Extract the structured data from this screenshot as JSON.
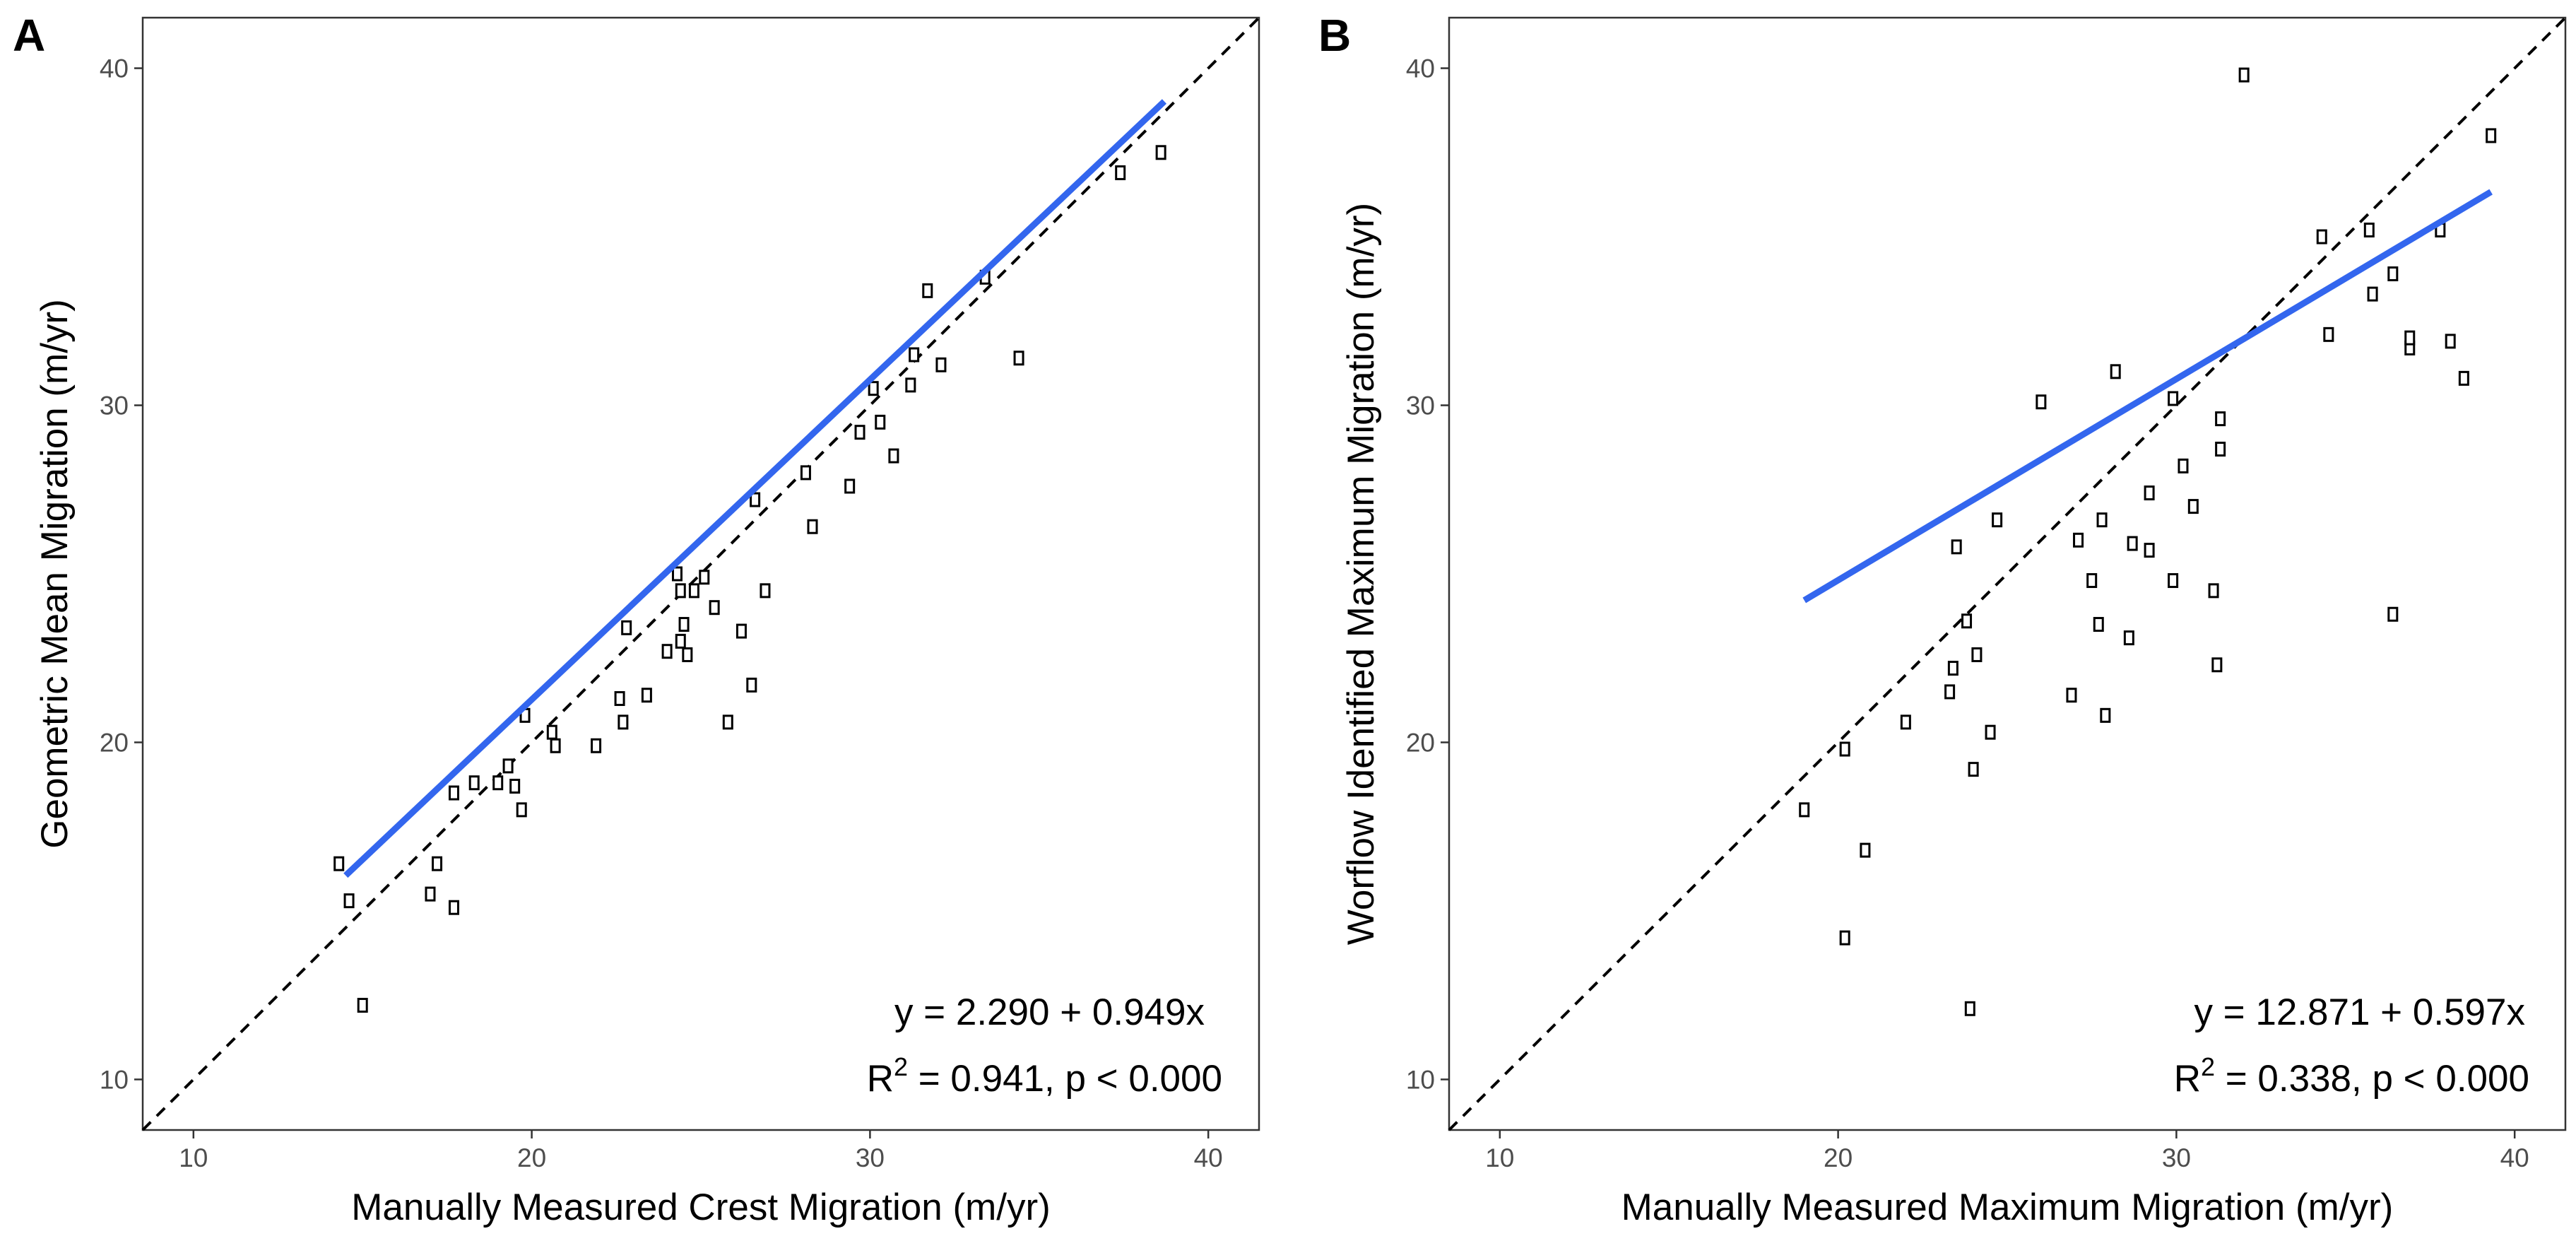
{
  "chart_data": [
    {
      "panel_label": "A",
      "type": "scatter",
      "xlabel": "Manually Measured Crest Migration (m/yr)",
      "ylabel": "Geometric Mean Migration (m/yr)",
      "xlim": [
        8.5,
        41.5
      ],
      "ylim": [
        8.5,
        41.5
      ],
      "xticks": [
        10,
        20,
        30,
        40
      ],
      "yticks": [
        10,
        20,
        30,
        40
      ],
      "xtick_labels": [
        "10",
        "20",
        "30",
        "40"
      ],
      "ytick_labels": [
        "10",
        "20",
        "30",
        "40"
      ],
      "grid": false,
      "reference_line": {
        "style": "dashed",
        "color": "#000000",
        "description": "1:1 line"
      },
      "fit_line": {
        "intercept": 2.29,
        "slope": 0.949,
        "x_range": [
          14.5,
          38.7
        ],
        "color": "#3366ee"
      },
      "annotation": {
        "equation": "y = 2.290 + 0.949x",
        "r2_prefix": "R",
        "r2_sup": "2",
        "r2_rest": " = 0.941, p < 0.000"
      },
      "points": [
        [
          14.3,
          16.4
        ],
        [
          14.6,
          15.3
        ],
        [
          15.0,
          12.2
        ],
        [
          17.0,
          15.5
        ],
        [
          17.2,
          16.4
        ],
        [
          17.7,
          15.1
        ],
        [
          17.7,
          18.5
        ],
        [
          18.3,
          18.8
        ],
        [
          19.0,
          18.8
        ],
        [
          19.3,
          19.3
        ],
        [
          19.5,
          18.7
        ],
        [
          19.7,
          18.0
        ],
        [
          19.8,
          20.8
        ],
        [
          20.6,
          20.3
        ],
        [
          20.7,
          19.9
        ],
        [
          21.9,
          19.9
        ],
        [
          22.6,
          21.3
        ],
        [
          22.7,
          20.6
        ],
        [
          22.8,
          23.4
        ],
        [
          23.4,
          21.4
        ],
        [
          24.0,
          22.7
        ],
        [
          24.3,
          25.0
        ],
        [
          24.4,
          24.5
        ],
        [
          24.4,
          23.0
        ],
        [
          24.5,
          23.5
        ],
        [
          24.6,
          22.6
        ],
        [
          24.8,
          24.5
        ],
        [
          25.1,
          24.9
        ],
        [
          25.4,
          24.0
        ],
        [
          25.8,
          20.6
        ],
        [
          26.2,
          23.3
        ],
        [
          26.5,
          21.7
        ],
        [
          26.6,
          27.2
        ],
        [
          26.9,
          24.5
        ],
        [
          28.1,
          28.0
        ],
        [
          28.3,
          26.4
        ],
        [
          29.4,
          27.6
        ],
        [
          29.7,
          29.2
        ],
        [
          30.1,
          30.5
        ],
        [
          30.3,
          29.5
        ],
        [
          30.7,
          28.5
        ],
        [
          31.2,
          30.6
        ],
        [
          31.3,
          31.5
        ],
        [
          31.7,
          33.4
        ],
        [
          32.1,
          31.2
        ],
        [
          33.4,
          33.8
        ],
        [
          34.4,
          31.4
        ],
        [
          37.4,
          36.9
        ],
        [
          38.6,
          37.5
        ]
      ]
    },
    {
      "panel_label": "B",
      "type": "scatter",
      "xlabel": "Manually Measured Maximum Migration (m/yr)",
      "ylabel": "Worflow Identified Maximum Migration (m/yr)",
      "xlim": [
        8.5,
        41.5
      ],
      "ylim": [
        8.5,
        41.5
      ],
      "xticks": [
        10,
        20,
        30,
        40
      ],
      "yticks": [
        10,
        20,
        30,
        40
      ],
      "xtick_labels": [
        "10",
        "20",
        "30",
        "40"
      ],
      "ytick_labels": [
        "10",
        "20",
        "30",
        "40"
      ],
      "grid": false,
      "reference_line": {
        "style": "dashed",
        "color": "#000000",
        "description": "1:1 line"
      },
      "fit_line": {
        "intercept": 12.871,
        "slope": 0.597,
        "x_range": [
          19.0,
          39.3
        ],
        "color": "#3366ee"
      },
      "annotation": {
        "equation": "y = 12.871 + 0.597x",
        "r2_prefix": "R",
        "r2_sup": "2",
        "r2_rest": " = 0.338, p < 0.000"
      },
      "points": [
        [
          19.0,
          18.0
        ],
        [
          20.2,
          19.8
        ],
        [
          20.2,
          14.2
        ],
        [
          20.8,
          16.8
        ],
        [
          22.0,
          20.6
        ],
        [
          23.3,
          21.5
        ],
        [
          23.4,
          22.2
        ],
        [
          23.5,
          25.8
        ],
        [
          23.8,
          23.6
        ],
        [
          23.9,
          12.1
        ],
        [
          24.0,
          19.2
        ],
        [
          24.1,
          22.6
        ],
        [
          24.5,
          20.3
        ],
        [
          24.7,
          26.6
        ],
        [
          26.0,
          30.1
        ],
        [
          26.9,
          21.4
        ],
        [
          27.1,
          26.0
        ],
        [
          27.5,
          24.8
        ],
        [
          27.7,
          23.5
        ],
        [
          27.8,
          26.6
        ],
        [
          27.9,
          20.8
        ],
        [
          28.2,
          31.0
        ],
        [
          28.6,
          23.1
        ],
        [
          28.7,
          25.9
        ],
        [
          29.2,
          27.4
        ],
        [
          29.2,
          25.7
        ],
        [
          29.9,
          30.2
        ],
        [
          29.9,
          24.8
        ],
        [
          30.2,
          28.2
        ],
        [
          30.5,
          27.0
        ],
        [
          31.1,
          24.5
        ],
        [
          31.2,
          22.3
        ],
        [
          31.3,
          29.6
        ],
        [
          31.3,
          28.7
        ],
        [
          32.0,
          39.8
        ],
        [
          34.3,
          35.0
        ],
        [
          34.5,
          32.1
        ],
        [
          35.7,
          35.2
        ],
        [
          35.8,
          33.3
        ],
        [
          36.4,
          33.9
        ],
        [
          36.4,
          23.8
        ],
        [
          36.9,
          31.7
        ],
        [
          36.9,
          32.0
        ],
        [
          37.8,
          35.2
        ],
        [
          38.1,
          31.9
        ],
        [
          38.5,
          30.8
        ],
        [
          39.3,
          38.0
        ]
      ]
    }
  ]
}
